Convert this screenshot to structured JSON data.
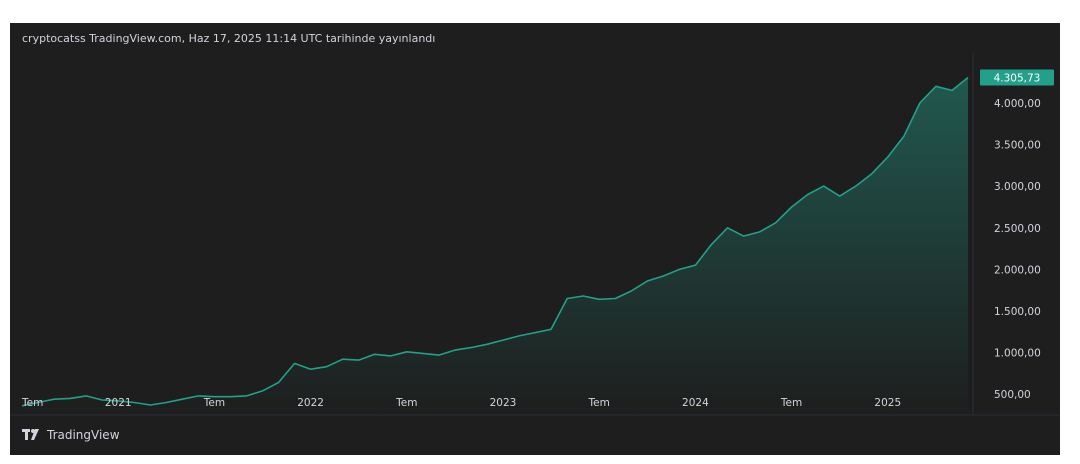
{
  "header": {
    "publish_note": "cryptocatss TradingView.com, Haz 17, 2025 11:14 UTC tarihinde yayınlandı"
  },
  "footer": {
    "brand": "TradingView"
  },
  "colors": {
    "background": "#1e1e1e",
    "line": "#22a08a",
    "badge": "#22a08a",
    "axis_text": "#d1d4dc"
  },
  "chart_data": {
    "type": "area",
    "title": "",
    "xlabel": "",
    "ylabel": "",
    "ylim": [
      250,
      4600
    ],
    "y_ticks": [
      500,
      1000,
      1500,
      2000,
      2500,
      3000,
      3500,
      4000
    ],
    "y_tick_labels": [
      "500,00",
      "1.000,00",
      "1.500,00",
      "2.000,00",
      "2.500,00",
      "3.000,00",
      "3.500,00",
      "4.000,00"
    ],
    "x_ticks": [
      {
        "label": "Tem",
        "x": "2020-07"
      },
      {
        "label": "2021",
        "x": "2021-01"
      },
      {
        "label": "Tem",
        "x": "2021-07"
      },
      {
        "label": "2022",
        "x": "2022-01"
      },
      {
        "label": "Tem",
        "x": "2022-07"
      },
      {
        "label": "2023",
        "x": "2023-01"
      },
      {
        "label": "Tem",
        "x": "2023-07"
      },
      {
        "label": "2024",
        "x": "2024-01"
      },
      {
        "label": "Tem",
        "x": "2024-07"
      },
      {
        "label": "2025",
        "x": "2025-01"
      }
    ],
    "last_value": 4305.73,
    "last_value_label": "4.305,73",
    "series": [
      {
        "x": [
          "2020-07",
          "2020-08",
          "2020-09",
          "2020-10",
          "2020-11",
          "2020-12",
          "2021-01",
          "2021-02",
          "2021-03",
          "2021-04",
          "2021-05",
          "2021-06",
          "2021-07",
          "2021-08",
          "2021-09",
          "2021-10",
          "2021-11",
          "2021-12",
          "2022-01",
          "2022-02",
          "2022-03",
          "2022-04",
          "2022-05",
          "2022-06",
          "2022-07",
          "2022-08",
          "2022-09",
          "2022-10",
          "2022-11",
          "2022-12",
          "2023-01",
          "2023-02",
          "2023-03",
          "2023-04",
          "2023-05",
          "2023-06",
          "2023-07",
          "2023-08",
          "2023-09",
          "2023-10",
          "2023-11",
          "2023-12",
          "2024-01",
          "2024-02",
          "2024-03",
          "2024-04",
          "2024-05",
          "2024-06",
          "2024-07",
          "2024-08",
          "2024-09",
          "2024-10",
          "2024-11",
          "2024-12",
          "2025-01",
          "2025-02",
          "2025-03",
          "2025-04",
          "2025-05",
          "2025-06"
        ],
        "y": [
          360,
          400,
          440,
          450,
          480,
          430,
          420,
          400,
          370,
          400,
          440,
          480,
          470,
          470,
          480,
          540,
          640,
          870,
          800,
          830,
          920,
          910,
          980,
          960,
          1010,
          990,
          970,
          1030,
          1060,
          1100,
          1150,
          1200,
          1240,
          1280,
          1650,
          1680,
          1640,
          1650,
          1740,
          1860,
          1920,
          2000,
          2050,
          2300,
          2500,
          2400,
          2450,
          2560,
          2750,
          2900,
          3000,
          2880,
          3000,
          3150,
          3350,
          3600,
          4000,
          4200,
          4150,
          4305.73
        ]
      }
    ]
  }
}
